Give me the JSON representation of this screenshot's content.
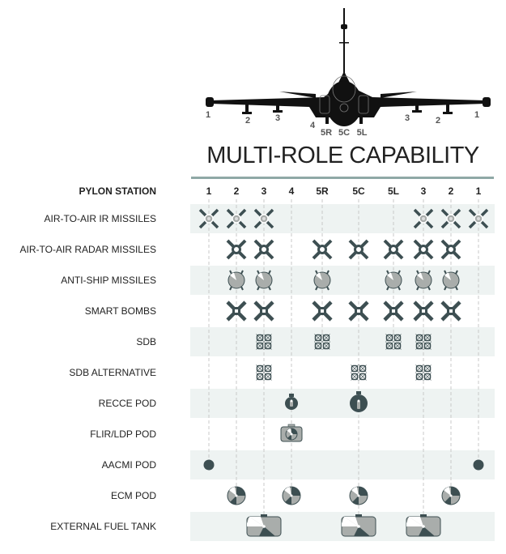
{
  "title": "MULTI-ROLE CAPABILITY",
  "header_label": "PYLON STATION",
  "stations": [
    "1",
    "2",
    "3",
    "4",
    "5R",
    "5C",
    "5L",
    "3",
    "2",
    "1"
  ],
  "colors": {
    "dark": "#3d4f52",
    "band": "#eef3f2",
    "gray": "#a9adab",
    "rule": "#8fa8a6"
  },
  "rows": [
    {
      "label": "AIR-TO-AIR IR MISSILES",
      "icon": "ir-missile",
      "stations": [
        0,
        1,
        2,
        7,
        8,
        9
      ]
    },
    {
      "label": "AIR-TO-AIR RADAR MISSILES",
      "icon": "radar-missile",
      "stations": [
        1,
        2,
        4,
        5,
        6,
        7,
        8
      ]
    },
    {
      "label": "ANTI-SHIP MISSILES",
      "icon": "anti-ship-missile",
      "stations": [
        1,
        2,
        4,
        6,
        7,
        8
      ]
    },
    {
      "label": "SMART BOMBS",
      "icon": "smart-bomb",
      "stations": [
        1,
        2,
        4,
        5,
        6,
        7,
        8
      ]
    },
    {
      "label": "SDB",
      "icon": "sdb",
      "stations": [
        2,
        4,
        6,
        7
      ]
    },
    {
      "label": "SDB ALTERNATIVE",
      "icon": "sdb",
      "stations": [
        2,
        5,
        7
      ]
    },
    {
      "label": "RECCE POD",
      "icon": "recce-pod",
      "stations": [
        3,
        5
      ]
    },
    {
      "label": "FLIR/LDP POD",
      "icon": "flir-pod",
      "stations": [
        3
      ]
    },
    {
      "label": "AACMI POD",
      "icon": "aacmi-pod",
      "stations": [
        0,
        9
      ]
    },
    {
      "label": "ECM POD",
      "icon": "ecm-pod",
      "stations": [
        1,
        3,
        5,
        8
      ]
    },
    {
      "label": "EXTERNAL FUEL TANK",
      "icon": "fuel-tank",
      "stations": [
        2,
        5,
        7
      ]
    }
  ]
}
